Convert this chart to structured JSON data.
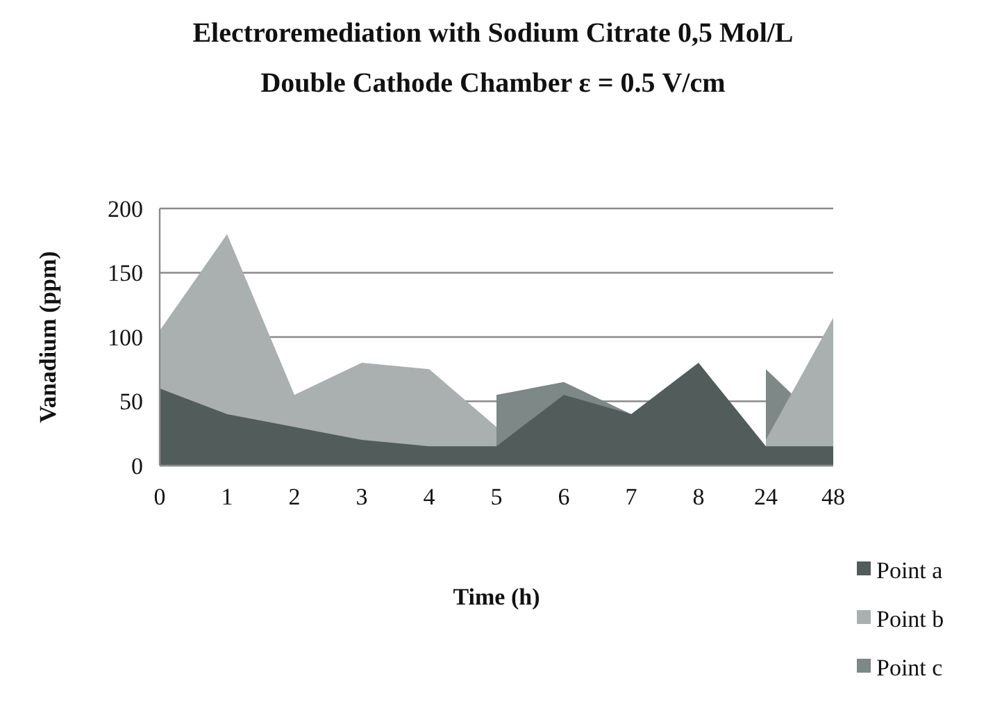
{
  "chart_data": {
    "type": "area",
    "title": "Electroremediation with Sodium Citrate 0,5 Mol/L",
    "subtitle": "Double Cathode Chamber ε = 0.5 V/cm",
    "xlabel": "Time (h)",
    "ylabel": "Vanadium (ppm)",
    "categories": [
      "0",
      "1",
      "2",
      "3",
      "4",
      "5",
      "6",
      "7",
      "8",
      "24",
      "48"
    ],
    "series": [
      {
        "name": "Point a",
        "color": "#515c5b",
        "values": [
          60,
          40,
          30,
          20,
          15,
          15,
          55,
          40,
          80,
          15,
          15
        ]
      },
      {
        "name": "Point b",
        "color": "#a9b0af",
        "values": [
          105,
          180,
          55,
          80,
          75,
          30,
          null,
          null,
          null,
          20,
          115
        ]
      },
      {
        "name": "Point c",
        "color": "#7d8887",
        "values": [
          null,
          null,
          null,
          null,
          null,
          55,
          65,
          40,
          null,
          75,
          25
        ]
      }
    ],
    "ylim": [
      0,
      200
    ],
    "yticks": [
      0,
      50,
      100,
      150,
      200
    ],
    "grid": "y",
    "legend": "right"
  }
}
